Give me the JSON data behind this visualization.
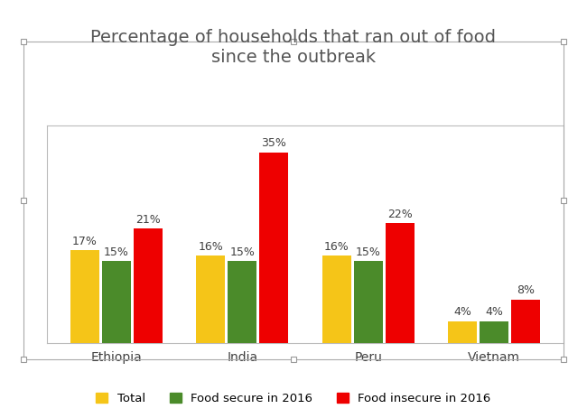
{
  "title": "Percentage of households that ran out of food\nsince the outbreak",
  "categories": [
    "Ethiopia",
    "India",
    "Peru",
    "Vietnam"
  ],
  "series": {
    "Total": [
      17,
      16,
      16,
      4
    ],
    "Food secure in 2016": [
      15,
      15,
      15,
      4
    ],
    "Food insecure in 2016": [
      21,
      35,
      22,
      8
    ]
  },
  "colors": {
    "Total": "#F5C518",
    "Food secure in 2016": "#4B8B2A",
    "Food insecure in 2016": "#EE0000"
  },
  "ylim": [
    0,
    40
  ],
  "bar_width": 0.25,
  "background_color": "#FFFFFF",
  "grid_color": "#D0D0D0",
  "title_fontsize": 14,
  "label_fontsize": 9,
  "tick_fontsize": 10,
  "legend_fontsize": 9.5
}
